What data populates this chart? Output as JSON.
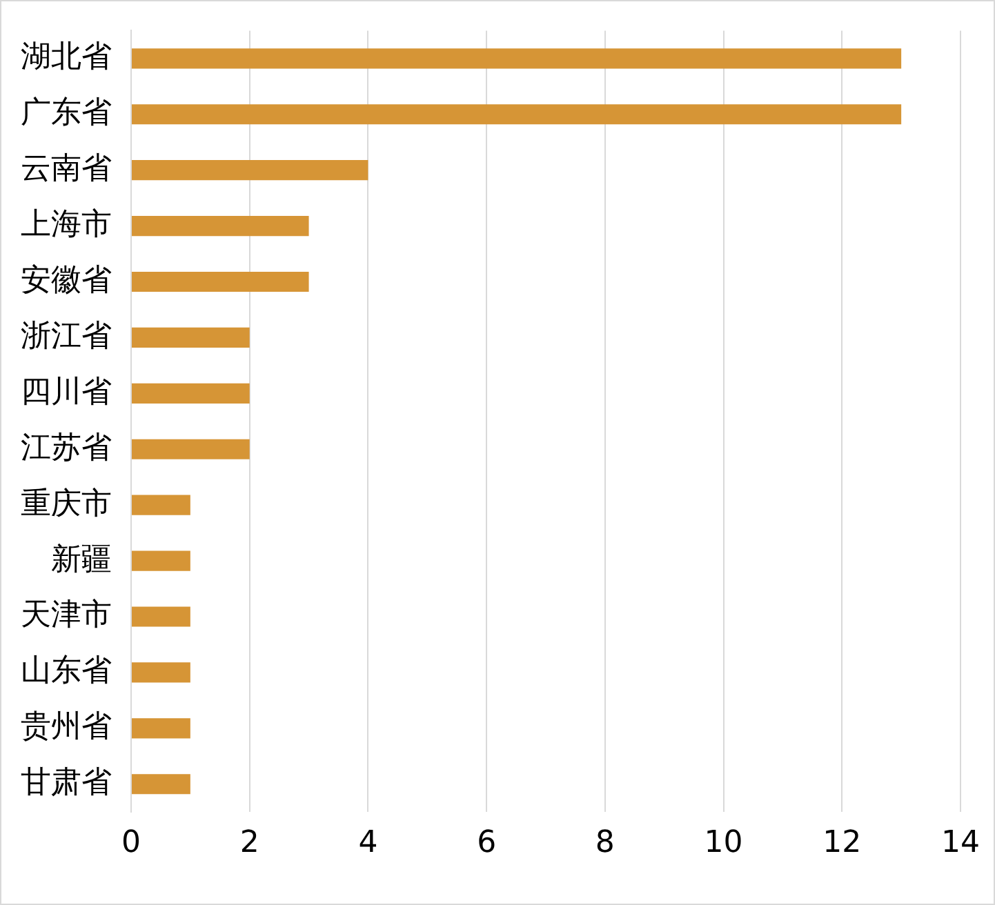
{
  "chart_data": {
    "type": "bar",
    "orientation": "horizontal",
    "categories": [
      "湖北省",
      "广东省",
      "云南省",
      "上海市",
      "安徽省",
      "浙江省",
      "四川省",
      "江苏省",
      "重庆市",
      "新疆",
      "天津市",
      "山东省",
      "贵州省",
      "甘肃省"
    ],
    "values": [
      13,
      13,
      4,
      3,
      3,
      2,
      2,
      2,
      1,
      1,
      1,
      1,
      1,
      1
    ],
    "color": "#d69536",
    "xlim": [
      0,
      14
    ],
    "xticks": [
      0,
      2,
      4,
      6,
      8,
      10,
      12,
      14
    ],
    "grid": "x",
    "legend": false
  }
}
